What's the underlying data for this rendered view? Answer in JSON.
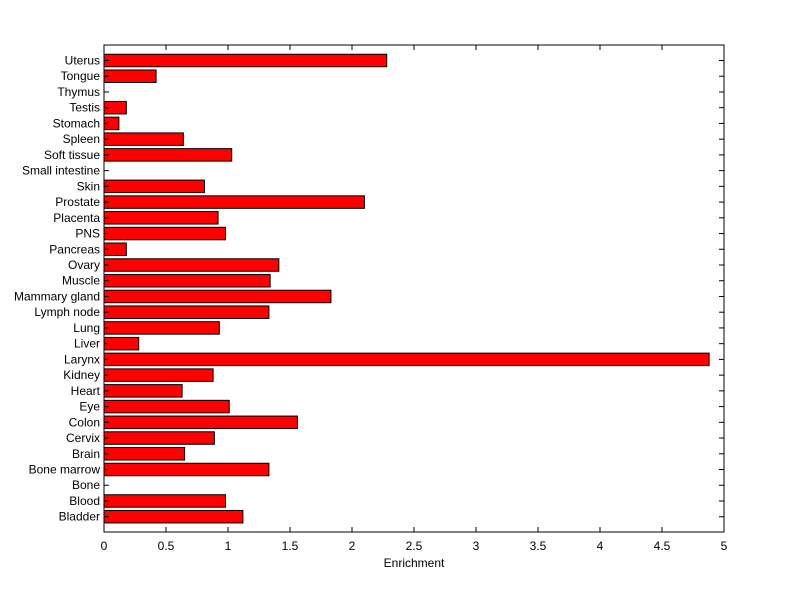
{
  "chart_data": {
    "type": "bar",
    "orientation": "horizontal",
    "title": "",
    "xlabel": "Enrichment",
    "ylabel": "",
    "xlim": [
      0,
      5
    ],
    "xticks": [
      "0",
      "0.5",
      "1",
      "1.5",
      "2",
      "2.5",
      "3",
      "3.5",
      "4",
      "4.5",
      "5"
    ],
    "grid": false,
    "bar_color": "#ff0000",
    "categories": [
      "Bladder",
      "Blood",
      "Bone",
      "Bone marrow",
      "Brain",
      "Cervix",
      "Colon",
      "Eye",
      "Heart",
      "Kidney",
      "Larynx",
      "Liver",
      "Lung",
      "Lymph node",
      "Mammary gland",
      "Muscle",
      "Ovary",
      "Pancreas",
      "PNS",
      "Placenta",
      "Prostate",
      "Skin",
      "Small intestine",
      "Soft tissue",
      "Spleen",
      "Stomach",
      "Testis",
      "Thymus",
      "Tongue",
      "Uterus"
    ],
    "values": [
      1.12,
      0.98,
      0.0,
      1.33,
      0.65,
      0.89,
      1.56,
      1.01,
      0.63,
      0.88,
      4.88,
      0.28,
      0.93,
      1.33,
      1.83,
      1.34,
      1.41,
      0.18,
      0.98,
      0.92,
      2.1,
      0.81,
      0.0,
      1.03,
      0.64,
      0.12,
      0.18,
      0.0,
      0.42,
      2.28
    ]
  }
}
